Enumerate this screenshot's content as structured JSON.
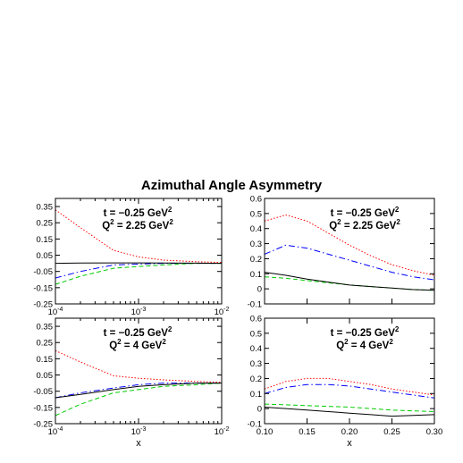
{
  "figure": {
    "title": "Azimuthal Angle Asymmetry"
  },
  "chart_data": [
    {
      "type": "line",
      "panel": "top-left",
      "xscale": "log",
      "xlim": [
        0.0001,
        0.01
      ],
      "ylim": [
        -0.25,
        0.4
      ],
      "yticks": [
        "-0.25",
        "-0.15",
        "-0.05",
        "0.05",
        "0.15",
        "0.25",
        "0.35"
      ],
      "xticks": [
        {
          "base": "10",
          "exp": "-4"
        },
        {
          "base": "10",
          "exp": "-3"
        },
        {
          "base": "10",
          "exp": "-2"
        }
      ],
      "annotation": {
        "t_text": "t = −0.25 GeV",
        "t_sup": "2",
        "q_text": "Q",
        "q_sup": "2",
        "q_rest": " = 2.25 GeV",
        "q_sup2": "2"
      },
      "xlabel": "",
      "series": [
        {
          "style": "dotted",
          "color": "#ff0000",
          "x": [
            0.0001,
            0.0002,
            0.0005,
            0.001,
            0.002,
            0.005,
            0.01
          ],
          "y": [
            0.33,
            0.22,
            0.08,
            0.04,
            0.02,
            0.01,
            0.005
          ]
        },
        {
          "style": "dashdot",
          "color": "#0000ff",
          "x": [
            0.0001,
            0.0002,
            0.0005,
            0.001,
            0.002,
            0.005,
            0.01
          ],
          "y": [
            -0.09,
            -0.05,
            -0.01,
            -0.005,
            0.0,
            0.0,
            0.0
          ]
        },
        {
          "style": "dashed",
          "color": "#00cc00",
          "x": [
            0.0001,
            0.0002,
            0.0005,
            0.001,
            0.002,
            0.005,
            0.01
          ],
          "y": [
            -0.13,
            -0.08,
            -0.03,
            -0.02,
            -0.01,
            0.0,
            0.0
          ]
        },
        {
          "style": "solid",
          "color": "#000000",
          "x": [
            0.0001,
            0.0002,
            0.0005,
            0.001,
            0.002,
            0.005,
            0.01
          ],
          "y": [
            0.0,
            0.002,
            0.003,
            0.003,
            0.002,
            0.001,
            0.0
          ]
        }
      ]
    },
    {
      "type": "line",
      "panel": "top-right",
      "xscale": "linear",
      "xlim": [
        0.1,
        0.3
      ],
      "ylim": [
        -0.1,
        0.6
      ],
      "yticks": [
        "-0.1",
        "0",
        "0.1",
        "0.2",
        "0.3",
        "0.4",
        "0.5",
        "0.6"
      ],
      "xticks": [],
      "annotation": {
        "t_text": "t = −0.25 GeV",
        "t_sup": "2",
        "q_text": "Q",
        "q_sup": "2",
        "q_rest": " = 2.25 GeV",
        "q_sup2": "2"
      },
      "xlabel": "",
      "series": [
        {
          "style": "dotted",
          "color": "#ff0000",
          "x": [
            0.1,
            0.125,
            0.15,
            0.175,
            0.2,
            0.225,
            0.25,
            0.275,
            0.3
          ],
          "y": [
            0.45,
            0.49,
            0.45,
            0.37,
            0.29,
            0.22,
            0.16,
            0.12,
            0.09
          ]
        },
        {
          "style": "dashdot",
          "color": "#0000ff",
          "x": [
            0.1,
            0.125,
            0.15,
            0.175,
            0.2,
            0.225,
            0.25,
            0.275,
            0.3
          ],
          "y": [
            0.23,
            0.29,
            0.27,
            0.23,
            0.19,
            0.15,
            0.11,
            0.08,
            0.06
          ]
        },
        {
          "style": "dashed",
          "color": "#00cc00",
          "x": [
            0.1,
            0.125,
            0.15,
            0.175,
            0.2,
            0.225,
            0.25,
            0.275,
            0.3
          ],
          "y": [
            0.08,
            0.07,
            0.055,
            0.04,
            0.025,
            0.015,
            0.005,
            -0.005,
            -0.01
          ]
        },
        {
          "style": "solid",
          "color": "#000000",
          "x": [
            0.1,
            0.125,
            0.15,
            0.175,
            0.2,
            0.225,
            0.25,
            0.275,
            0.3
          ],
          "y": [
            0.11,
            0.09,
            0.065,
            0.045,
            0.025,
            0.015,
            0.005,
            -0.005,
            -0.01
          ]
        }
      ]
    },
    {
      "type": "line",
      "panel": "bottom-left",
      "xscale": "log",
      "xlim": [
        0.0001,
        0.01
      ],
      "ylim": [
        -0.25,
        0.4
      ],
      "yticks": [
        "-0.25",
        "-0.15",
        "-0.05",
        "0.05",
        "0.15",
        "0.25",
        "0.35"
      ],
      "xticks": [
        {
          "base": "10",
          "exp": "-4"
        },
        {
          "base": "10",
          "exp": "-3"
        },
        {
          "base": "10",
          "exp": "-2"
        }
      ],
      "annotation": {
        "t_text": "t = −0.25 GeV",
        "t_sup": "2",
        "q_text": "Q",
        "q_sup": "2",
        "q_rest": " = 4 GeV",
        "q_sup2": "2"
      },
      "xlabel": "x",
      "series": [
        {
          "style": "dotted",
          "color": "#ff0000",
          "x": [
            0.0001,
            0.0002,
            0.0005,
            0.001,
            0.002,
            0.005,
            0.01
          ],
          "y": [
            0.2,
            0.13,
            0.045,
            0.03,
            0.02,
            0.01,
            0.005
          ]
        },
        {
          "style": "dashdot",
          "color": "#0000ff",
          "x": [
            0.0001,
            0.0002,
            0.0005,
            0.001,
            0.002,
            0.005,
            0.01
          ],
          "y": [
            -0.09,
            -0.06,
            -0.03,
            -0.01,
            0.0,
            0.0,
            0.0
          ]
        },
        {
          "style": "dashed",
          "color": "#00cc00",
          "x": [
            0.0001,
            0.0002,
            0.0005,
            0.001,
            0.002,
            0.005,
            0.01
          ],
          "y": [
            -0.2,
            -0.13,
            -0.06,
            -0.04,
            -0.02,
            -0.01,
            0.0
          ]
        },
        {
          "style": "solid",
          "color": "#000000",
          "x": [
            0.0001,
            0.0002,
            0.0005,
            0.001,
            0.002,
            0.005,
            0.01
          ],
          "y": [
            -0.09,
            -0.07,
            -0.04,
            -0.02,
            -0.01,
            0.0,
            0.0
          ]
        }
      ]
    },
    {
      "type": "line",
      "panel": "bottom-right",
      "xscale": "linear",
      "xlim": [
        0.1,
        0.3
      ],
      "ylim": [
        -0.1,
        0.6
      ],
      "yticks": [
        "-0.1",
        "0",
        "0.1",
        "0.2",
        "0.3",
        "0.4",
        "0.5",
        "0.6"
      ],
      "xticks": [
        "0.10",
        "0.15",
        "0.20",
        "0.25",
        "0.30"
      ],
      "annotation": {
        "t_text": "t = −0.25 GeV",
        "t_sup": "2",
        "q_text": "Q",
        "q_sup": "2",
        "q_rest": " = 4 GeV",
        "q_sup2": "2"
      },
      "xlabel": "x",
      "series": [
        {
          "style": "dotted",
          "color": "#ff0000",
          "x": [
            0.1,
            0.125,
            0.15,
            0.175,
            0.2,
            0.225,
            0.25,
            0.275,
            0.3
          ],
          "y": [
            0.13,
            0.18,
            0.2,
            0.2,
            0.18,
            0.16,
            0.13,
            0.11,
            0.09
          ]
        },
        {
          "style": "dashdot",
          "color": "#0000ff",
          "x": [
            0.1,
            0.125,
            0.15,
            0.175,
            0.2,
            0.225,
            0.25,
            0.275,
            0.3
          ],
          "y": [
            0.1,
            0.14,
            0.16,
            0.16,
            0.15,
            0.13,
            0.11,
            0.09,
            0.07
          ]
        },
        {
          "style": "dashed",
          "color": "#00cc00",
          "x": [
            0.1,
            0.125,
            0.15,
            0.175,
            0.2,
            0.225,
            0.25,
            0.275,
            0.3
          ],
          "y": [
            0.03,
            0.025,
            0.02,
            0.015,
            0.01,
            0.0,
            -0.01,
            -0.015,
            -0.02
          ]
        },
        {
          "style": "solid",
          "color": "#000000",
          "x": [
            0.1,
            0.125,
            0.15,
            0.175,
            0.2,
            0.225,
            0.25,
            0.275,
            0.3
          ],
          "y": [
            0.01,
            0.0,
            -0.01,
            -0.02,
            -0.03,
            -0.04,
            -0.05,
            -0.045,
            -0.04
          ]
        }
      ]
    }
  ]
}
